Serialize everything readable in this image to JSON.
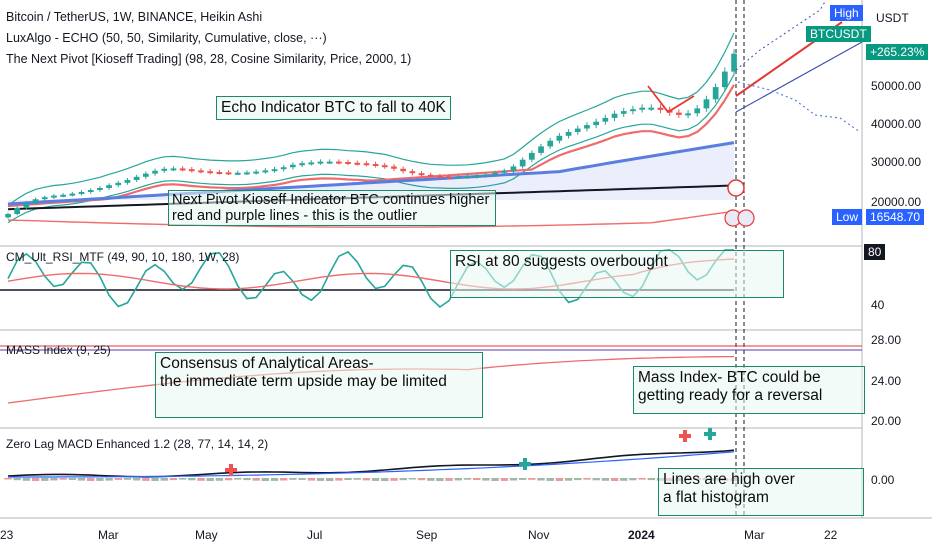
{
  "legends": {
    "main_title": "Bitcoin / TetherUS, 1W, BINANCE, Heikin Ashi",
    "indicator1": "LuxAlgo - ECHO (50, 50, Similarity, Cumulative, close, ···)",
    "indicator2": "The Next Pivot [Kioseff Trading] (98, 28, Cosine Similarity, Price, 2000, 1)"
  },
  "panes": {
    "rsi": "CM_Ult_RSI_MTF (49, 90, 10, 180, 1W, 28)",
    "mass": "MASS Index (9, 25)",
    "macd": "Zero Lag MACD Enhanced 1.2 (28, 77, 14, 14, 2)"
  },
  "notes": {
    "echo": "Echo Indicator BTC to fall to 40K",
    "pivot_line1": "Next Pivot Kioseff Indicator BTC continues higher",
    "pivot_line2": "red and purple lines - this is the outlier",
    "rsi": "RSI at 80 suggests overbought",
    "consensus_line1": "Consensus of   Analytical   Areas-",
    "consensus_line2": "the immediate term upside may be limited",
    "mass_line1": "Mass Index- BTC could be",
    "mass_line2": "getting ready for a reversal",
    "macd_line1": "Lines are high over",
    "macd_line2": "a flat histogram"
  },
  "price_axis": {
    "currency": "USDT",
    "high_tag": "High",
    "symbol_tag": "BTCUSDT",
    "change_tag": "+265.23%",
    "low_label": "Low",
    "low_value": "16548.70",
    "ticks": [
      "50000.00",
      "40000.00",
      "30000.00",
      "20000.00"
    ],
    "rsi_tick_80": "80",
    "rsi_tick_40": "40",
    "mass_ticks": [
      "28.00",
      "24.00",
      "20.00"
    ],
    "macd_tick": "0.00"
  },
  "time_axis": [
    "23",
    "Mar",
    "May",
    "Jul",
    "Sep",
    "Nov",
    "2024",
    "Mar",
    "22"
  ],
  "colors": {
    "bull": "#26a69a",
    "bear": "#ef5350",
    "note_border": "#1b8a6b",
    "tag_green": "#089981",
    "tag_blue": "#2962ff",
    "ema_blue": "#5b7fe0",
    "dark_line": "#131722"
  },
  "chart_data": {
    "type": "candlestick",
    "timeframe": "1W",
    "ylim": [
      14000,
      72000
    ],
    "candles_close": [
      17000,
      18500,
      19800,
      20700,
      21200,
      21600,
      21800,
      22100,
      22500,
      23000,
      23500,
      24200,
      24800,
      25500,
      26300,
      27100,
      27800,
      28300,
      28400,
      28200,
      27900,
      27700,
      27500,
      27400,
      27300,
      27300,
      27400,
      27600,
      27900,
      28200,
      28700,
      29300,
      29700,
      29900,
      30100,
      30100,
      30000,
      29800,
      29700,
      29500,
      29200,
      28900,
      28300,
      27700,
      27200,
      26800,
      26500,
      26400,
      26300,
      26300,
      26400,
      26600,
      26900,
      27300,
      27800,
      28900,
      30600,
      32400,
      34100,
      35600,
      36900,
      37900,
      38800,
      39700,
      40600,
      41600,
      42700,
      43400,
      43900,
      44300,
      44300,
      43700,
      43000,
      42400,
      42800,
      44100,
      46500,
      49700,
      53800,
      58500
    ],
    "echo_projection_low": 40000,
    "low": 16548.7,
    "rsi_levels": [
      80,
      40
    ],
    "mass_levels": [
      28,
      24,
      20
    ],
    "macd_zero": 0
  }
}
